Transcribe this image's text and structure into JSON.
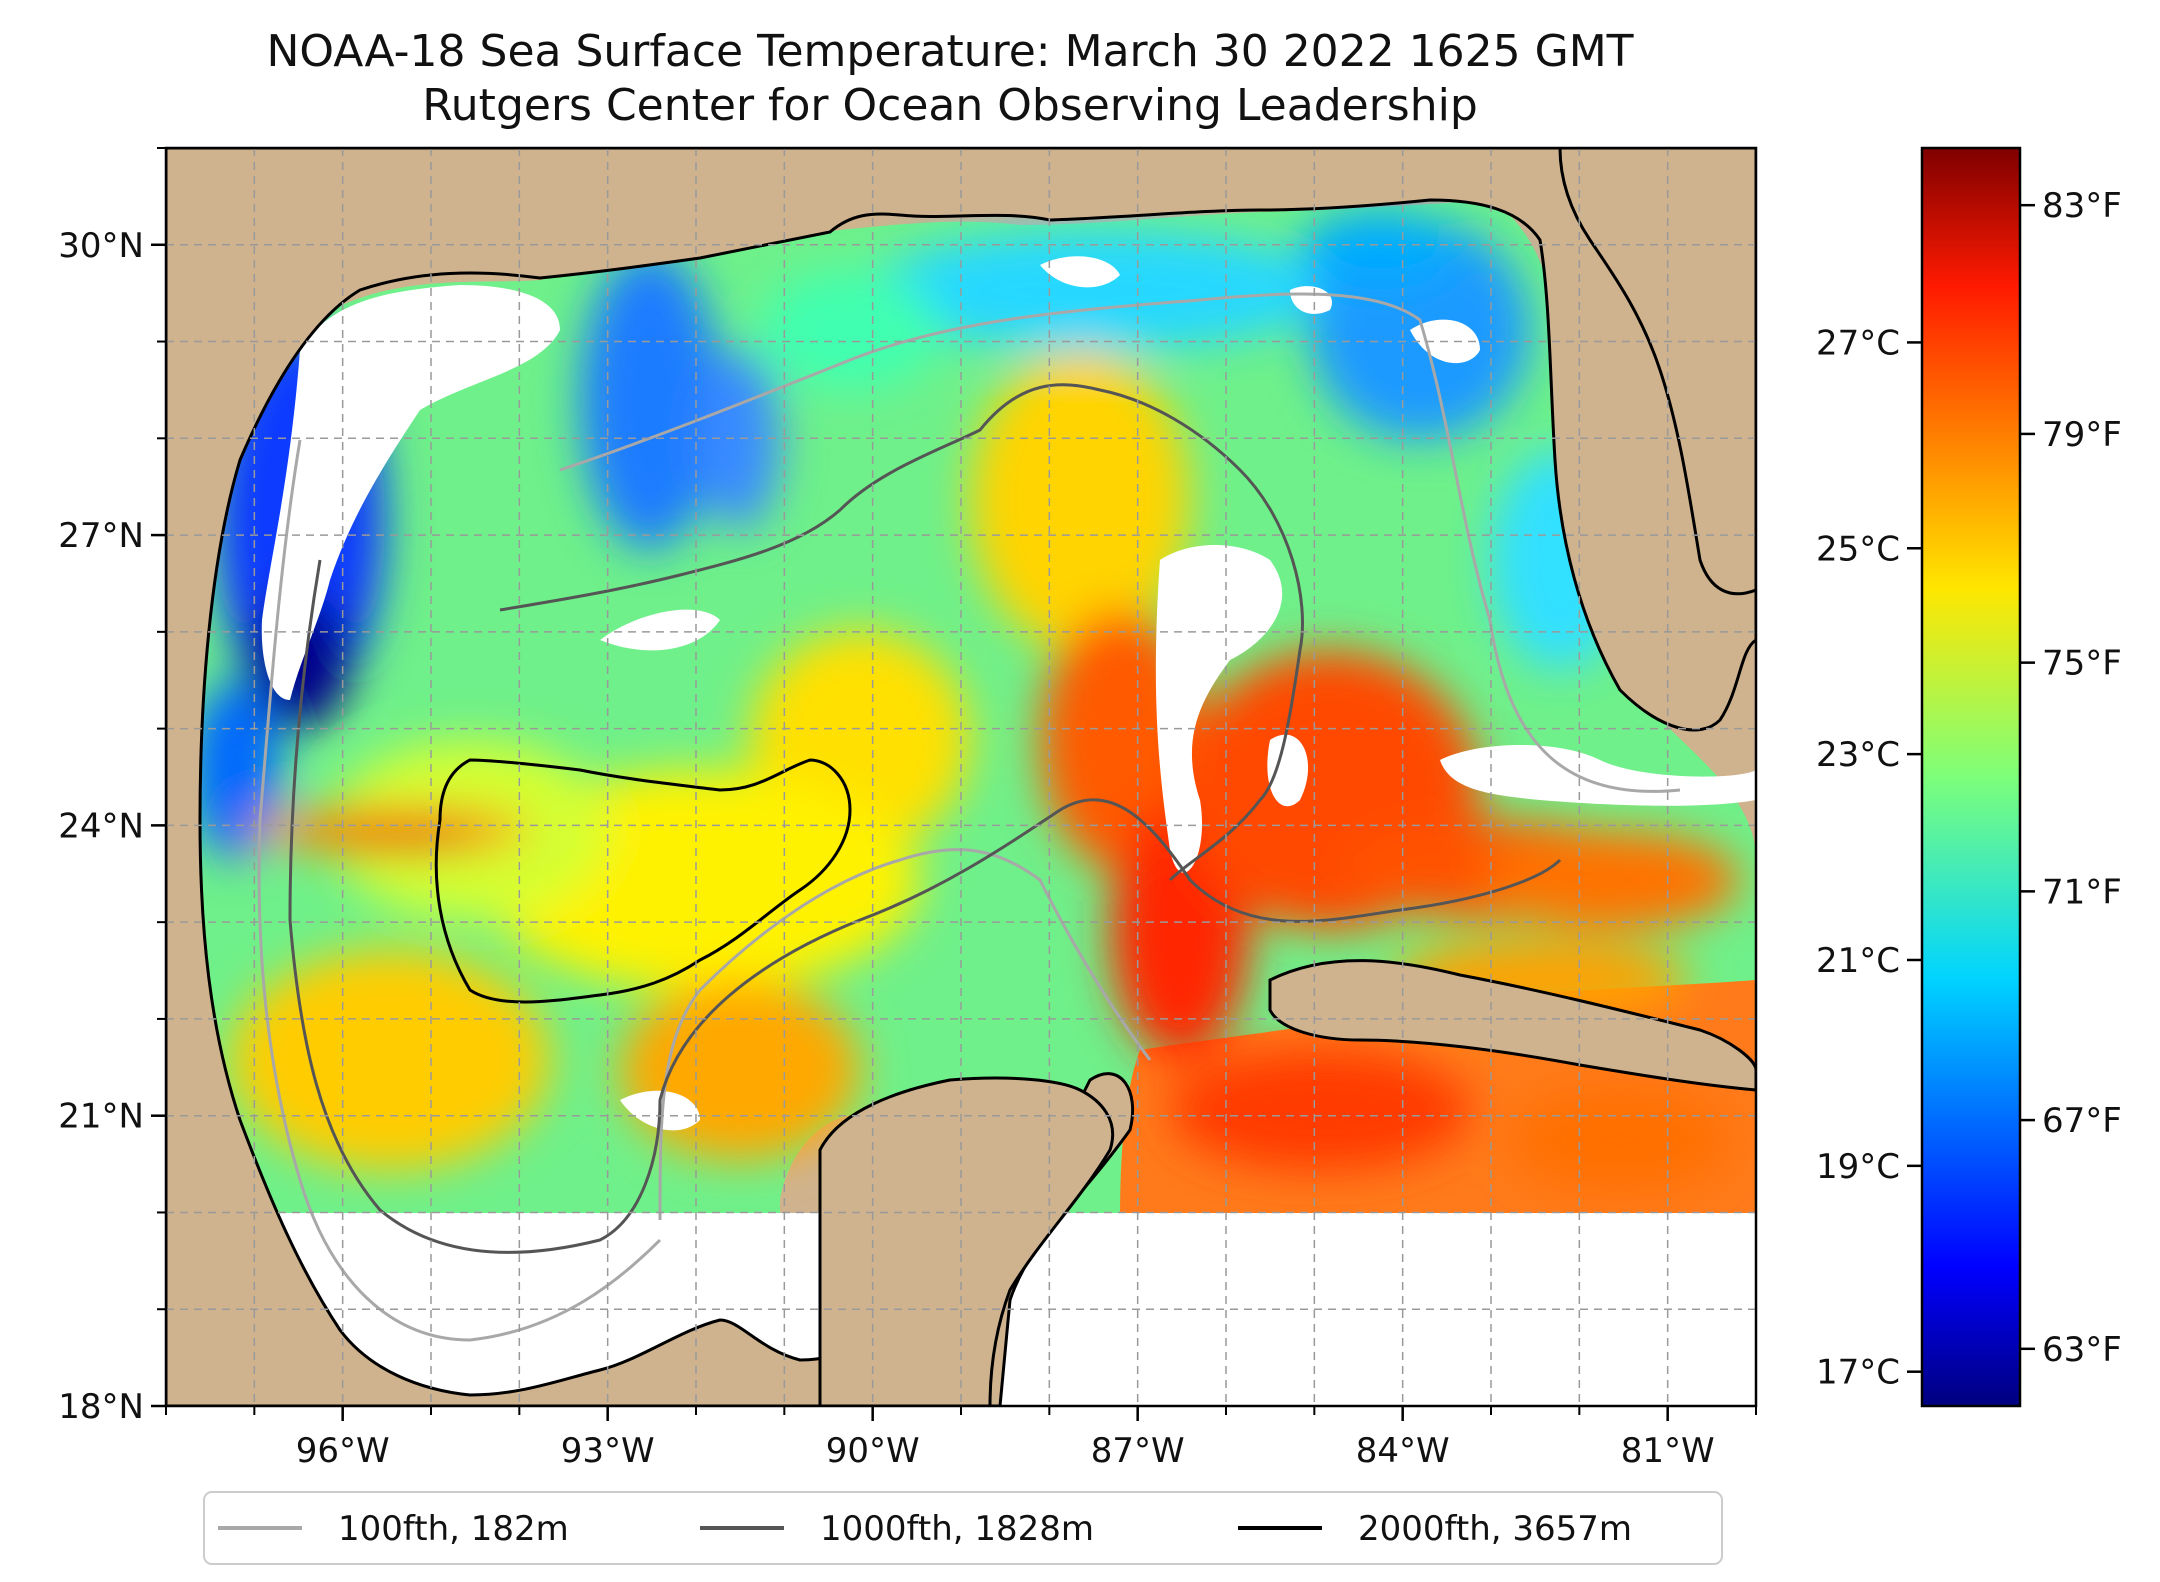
{
  "title": {
    "line1": "NOAA-18 Sea Surface Temperature: March 30 2022 1625 GMT",
    "line2": "Rutgers Center for Ocean Observing Leadership"
  },
  "map": {
    "lon_range": [
      -98,
      -80
    ],
    "lat_range": [
      18,
      31
    ],
    "lat_ticks": [
      {
        "value": 30,
        "label": "30°N"
      },
      {
        "value": 27,
        "label": "27°N"
      },
      {
        "value": 24,
        "label": "24°N"
      },
      {
        "value": 21,
        "label": "21°N"
      },
      {
        "value": 18,
        "label": "18°N"
      }
    ],
    "lon_ticks": [
      {
        "value": -96,
        "label": "96°W"
      },
      {
        "value": -93,
        "label": "93°W"
      },
      {
        "value": -90,
        "label": "90°W"
      },
      {
        "value": -87,
        "label": "87°W"
      },
      {
        "value": -84,
        "label": "84°W"
      },
      {
        "value": -81,
        "label": "81°W"
      }
    ],
    "gridlines": true,
    "land_color": "#cfb38e",
    "no_data_color": "#ffffff"
  },
  "colorbar": {
    "colormap": "jet",
    "range_f": [
      62,
      84
    ],
    "celsius_ticks": [
      {
        "value": 27,
        "label": "27°C"
      },
      {
        "value": 25,
        "label": "25°C"
      },
      {
        "value": 23,
        "label": "23°C"
      },
      {
        "value": 21,
        "label": "21°C"
      },
      {
        "value": 19,
        "label": "19°C"
      },
      {
        "value": 17,
        "label": "17°C"
      }
    ],
    "fahrenheit_ticks": [
      {
        "value": 83,
        "label": "83°F"
      },
      {
        "value": 79,
        "label": "79°F"
      },
      {
        "value": 75,
        "label": "75°F"
      },
      {
        "value": 71,
        "label": "71°F"
      },
      {
        "value": 67,
        "label": "67°F"
      },
      {
        "value": 63,
        "label": "63°F"
      }
    ]
  },
  "legend": {
    "placement": "bottom",
    "items": [
      {
        "label": "100fth, 182m",
        "color": "#a8a8a8"
      },
      {
        "label": "1000fth, 1828m",
        "color": "#555555"
      },
      {
        "label": "2000fth, 3657m",
        "color": "#000000"
      }
    ]
  }
}
